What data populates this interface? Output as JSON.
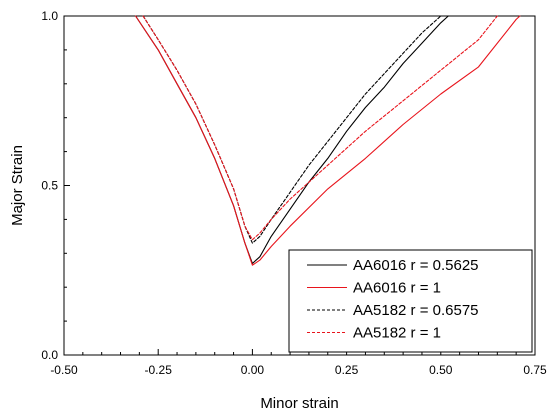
{
  "chart_data": {
    "type": "line",
    "xlabel": "Minor strain",
    "ylabel": "Major Strain",
    "xlim": [
      -0.5,
      0.75
    ],
    "ylim": [
      0.0,
      1.0
    ],
    "x_ticks": [
      "-0.50",
      "-0.25",
      "0.00",
      "0.25",
      "0.50",
      "0.75"
    ],
    "y_ticks": [
      "0.0",
      "0.5",
      "1.0"
    ],
    "legend_position": "bottom-right",
    "series": [
      {
        "name": "AA6016 r = 0.5625",
        "color": "#000000",
        "dash": "solid",
        "x": [
          -0.31,
          -0.25,
          -0.2,
          -0.15,
          -0.1,
          -0.05,
          -0.02,
          0.0,
          0.02,
          0.05,
          0.1,
          0.15,
          0.2,
          0.25,
          0.3,
          0.35,
          0.4,
          0.45,
          0.5,
          0.52
        ],
        "y": [
          1.0,
          0.9,
          0.8,
          0.7,
          0.58,
          0.44,
          0.33,
          0.27,
          0.29,
          0.35,
          0.43,
          0.51,
          0.58,
          0.66,
          0.73,
          0.79,
          0.86,
          0.92,
          0.98,
          1.0
        ]
      },
      {
        "name": "AA6016 r = 1",
        "color": "#e8141c",
        "dash": "solid",
        "x": [
          -0.31,
          -0.25,
          -0.2,
          -0.15,
          -0.1,
          -0.05,
          -0.02,
          0.0,
          0.02,
          0.05,
          0.1,
          0.2,
          0.3,
          0.4,
          0.5,
          0.6,
          0.7,
          0.71
        ],
        "y": [
          1.0,
          0.9,
          0.8,
          0.7,
          0.58,
          0.44,
          0.33,
          0.265,
          0.28,
          0.32,
          0.38,
          0.49,
          0.58,
          0.68,
          0.77,
          0.85,
          0.99,
          1.0
        ]
      },
      {
        "name": "AA5182 r = 0.6575",
        "color": "#000000",
        "dash": "dotted",
        "x": [
          -0.29,
          -0.25,
          -0.2,
          -0.15,
          -0.1,
          -0.05,
          -0.02,
          0.0,
          0.02,
          0.05,
          0.1,
          0.15,
          0.2,
          0.25,
          0.3,
          0.35,
          0.4,
          0.45,
          0.5
        ],
        "y": [
          1.0,
          0.93,
          0.84,
          0.74,
          0.62,
          0.49,
          0.38,
          0.33,
          0.35,
          0.4,
          0.48,
          0.56,
          0.63,
          0.7,
          0.77,
          0.83,
          0.89,
          0.95,
          1.0
        ]
      },
      {
        "name": "AA5182 r = 1",
        "color": "#e8141c",
        "dash": "dotted",
        "x": [
          -0.29,
          -0.25,
          -0.2,
          -0.15,
          -0.1,
          -0.05,
          -0.02,
          0.0,
          0.02,
          0.05,
          0.1,
          0.2,
          0.3,
          0.4,
          0.5,
          0.6,
          0.65
        ],
        "y": [
          1.0,
          0.93,
          0.84,
          0.74,
          0.62,
          0.49,
          0.38,
          0.34,
          0.36,
          0.4,
          0.46,
          0.56,
          0.66,
          0.75,
          0.84,
          0.93,
          1.0
        ]
      }
    ]
  }
}
